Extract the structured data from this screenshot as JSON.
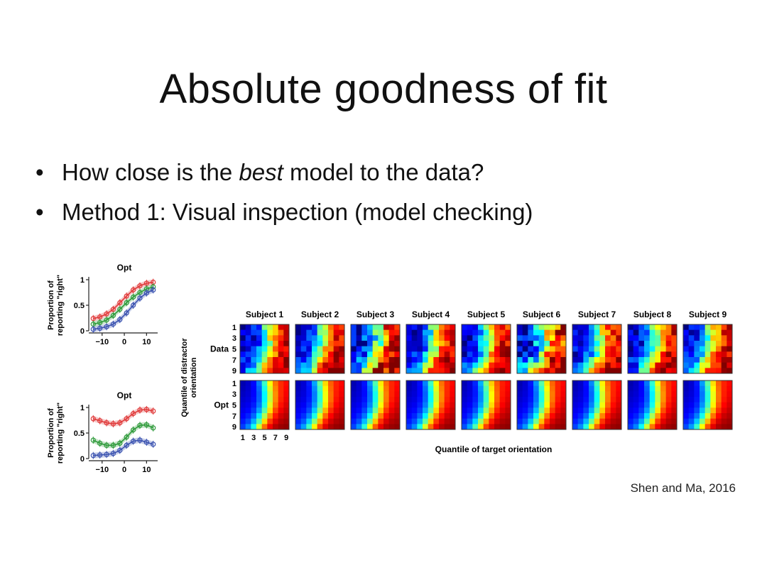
{
  "slide": {
    "title": "Absolute goodness of fit",
    "bullets": [
      {
        "pre": "How close is the ",
        "em": "best",
        "post": " model to the data?"
      },
      {
        "pre": "Method 1: Visual inspection (model checking)",
        "em": "",
        "post": ""
      }
    ],
    "citation": "Shen and Ma, 2016"
  },
  "colors": {
    "red": "#e03a3a",
    "green": "#2e9a3a",
    "blue": "#3a52b0"
  },
  "chart_data": [
    {
      "type": "line",
      "title": "Opt",
      "ylabel": "Proportion of reporting \"right\"",
      "xlabel": "",
      "x": [
        -14,
        -11,
        -8,
        -5,
        -2,
        1,
        4,
        7,
        10,
        13
      ],
      "xticks": [
        "−10",
        "0",
        "10"
      ],
      "yticks": [
        "0",
        "0.5",
        "1"
      ],
      "xlim": [
        -16,
        15
      ],
      "ylim": [
        0,
        1
      ],
      "series": [
        {
          "color": "red",
          "values": [
            0.24,
            0.27,
            0.33,
            0.42,
            0.55,
            0.68,
            0.8,
            0.88,
            0.93,
            0.95
          ]
        },
        {
          "color": "green",
          "values": [
            0.13,
            0.16,
            0.21,
            0.3,
            0.42,
            0.55,
            0.66,
            0.75,
            0.82,
            0.86
          ]
        },
        {
          "color": "blue",
          "values": [
            0.03,
            0.05,
            0.08,
            0.13,
            0.22,
            0.35,
            0.5,
            0.64,
            0.74,
            0.8
          ]
        }
      ]
    },
    {
      "type": "line",
      "title": "Opt",
      "ylabel": "Proportion of reporting \"right\"",
      "xlabel": "",
      "x": [
        -14,
        -11,
        -8,
        -5,
        -2,
        1,
        4,
        7,
        10,
        13
      ],
      "xticks": [
        "−10",
        "0",
        "10"
      ],
      "yticks": [
        "0",
        "0.5",
        "1"
      ],
      "xlim": [
        -16,
        15
      ],
      "ylim": [
        0,
        1
      ],
      "series": [
        {
          "color": "red",
          "values": [
            0.78,
            0.74,
            0.7,
            0.68,
            0.7,
            0.78,
            0.88,
            0.95,
            0.96,
            0.93
          ]
        },
        {
          "color": "green",
          "values": [
            0.36,
            0.3,
            0.26,
            0.26,
            0.3,
            0.42,
            0.56,
            0.65,
            0.66,
            0.6
          ]
        },
        {
          "color": "blue",
          "values": [
            0.06,
            0.07,
            0.08,
            0.1,
            0.16,
            0.26,
            0.34,
            0.36,
            0.32,
            0.28
          ]
        }
      ]
    },
    {
      "type": "heatmap",
      "subjects": [
        "Subject 1",
        "Subject 2",
        "Subject 3",
        "Subject 4",
        "Subject 5",
        "Subject 6",
        "Subject 7",
        "Subject 8",
        "Subject 9"
      ],
      "rows": [
        "Data",
        "Opt"
      ],
      "yticks": [
        "1",
        "3",
        "5",
        "7",
        "9"
      ],
      "xticks": [
        "1",
        "3",
        "5",
        "7",
        "9"
      ],
      "ylabel": "Quantile of distractor orientation",
      "xlabel": "Quantile of target orientation",
      "grid_size": 9,
      "colormap": "jet"
    }
  ]
}
